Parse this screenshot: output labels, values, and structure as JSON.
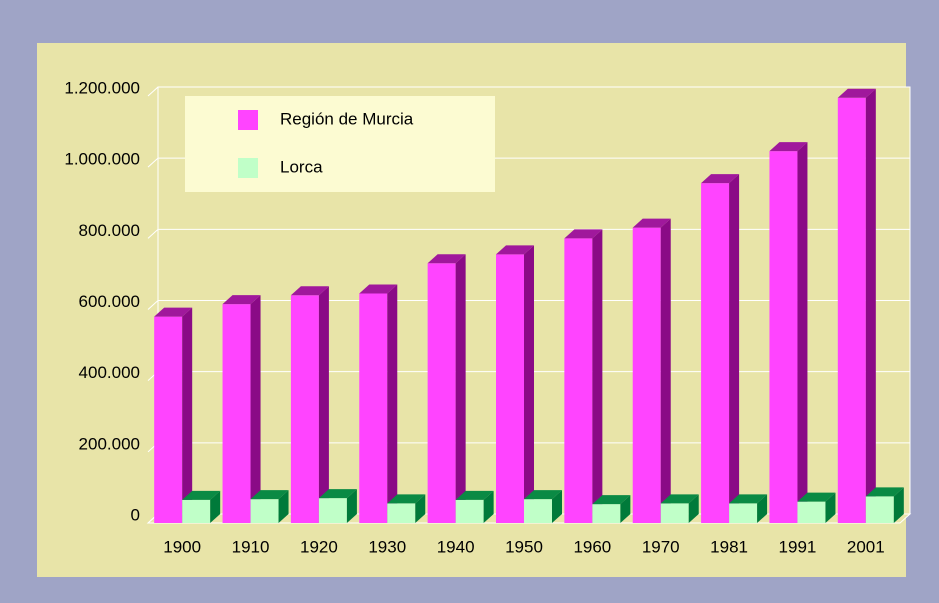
{
  "chart_data": {
    "type": "bar3d",
    "categories": [
      "1900",
      "1910",
      "1920",
      "1930",
      "1940",
      "1950",
      "1960",
      "1970",
      "1981",
      "1991",
      "2001"
    ],
    "series": [
      {
        "name": "Región de Murcia",
        "color": "#ff44ff",
        "values": [
          580000,
          615000,
          640000,
          645000,
          730000,
          755000,
          800000,
          830000,
          955000,
          1045000,
          1195000
        ]
      },
      {
        "name": "Lorca",
        "color": "#c0ffc8",
        "values": [
          65000,
          67000,
          70000,
          55000,
          65000,
          67000,
          53000,
          55000,
          55000,
          60000,
          75000
        ]
      }
    ],
    "ylim": [
      0,
      1200000
    ],
    "yticks": [
      0,
      {
        "value": 200000,
        "label": "200.000"
      },
      {
        "value": 400000,
        "label": "400.000"
      },
      {
        "value": 600000,
        "label": "600.000"
      },
      {
        "value": 800000,
        "label": "800.000"
      },
      {
        "value": 1000000,
        "label": "1.000.000"
      },
      {
        "value": 1200000,
        "label": "1.200.000"
      }
    ],
    "grid": true,
    "legend": "top-left"
  }
}
